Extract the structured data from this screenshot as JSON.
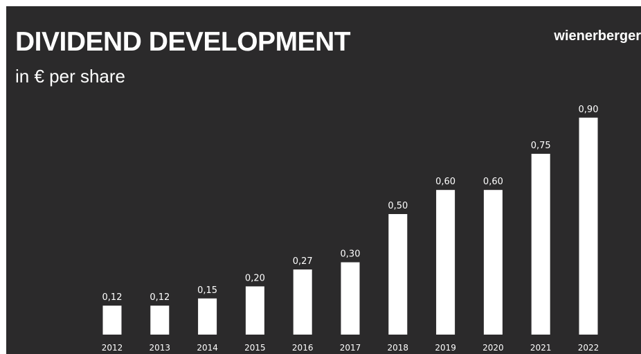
{
  "slide": {
    "title": "DIVIDEND DEVELOPMENT",
    "subtitle": "in € per share",
    "logo": "wienerberger"
  },
  "colors": {
    "background": "#2b2a2b",
    "bar": "#ffffff",
    "text": "#ffffff"
  },
  "chart_data": {
    "type": "bar",
    "title": "DIVIDEND DEVELOPMENT",
    "subtitle": "in € per share",
    "xlabel": "",
    "ylabel": "",
    "categories": [
      "2012",
      "2013",
      "2014",
      "2015",
      "2016",
      "2017",
      "2018",
      "2019",
      "2020",
      "2021",
      "2022"
    ],
    "values": [
      0.12,
      0.12,
      0.15,
      0.2,
      0.27,
      0.3,
      0.5,
      0.6,
      0.6,
      0.75,
      0.9
    ],
    "data_labels": [
      "0,12",
      "0,12",
      "0,15",
      "0,20",
      "0,27",
      "0,30",
      "0,50",
      "0,60",
      "0,60",
      "0,75",
      "0,90"
    ],
    "ylim": [
      0,
      0.9
    ],
    "grid": false,
    "legend": "none"
  }
}
